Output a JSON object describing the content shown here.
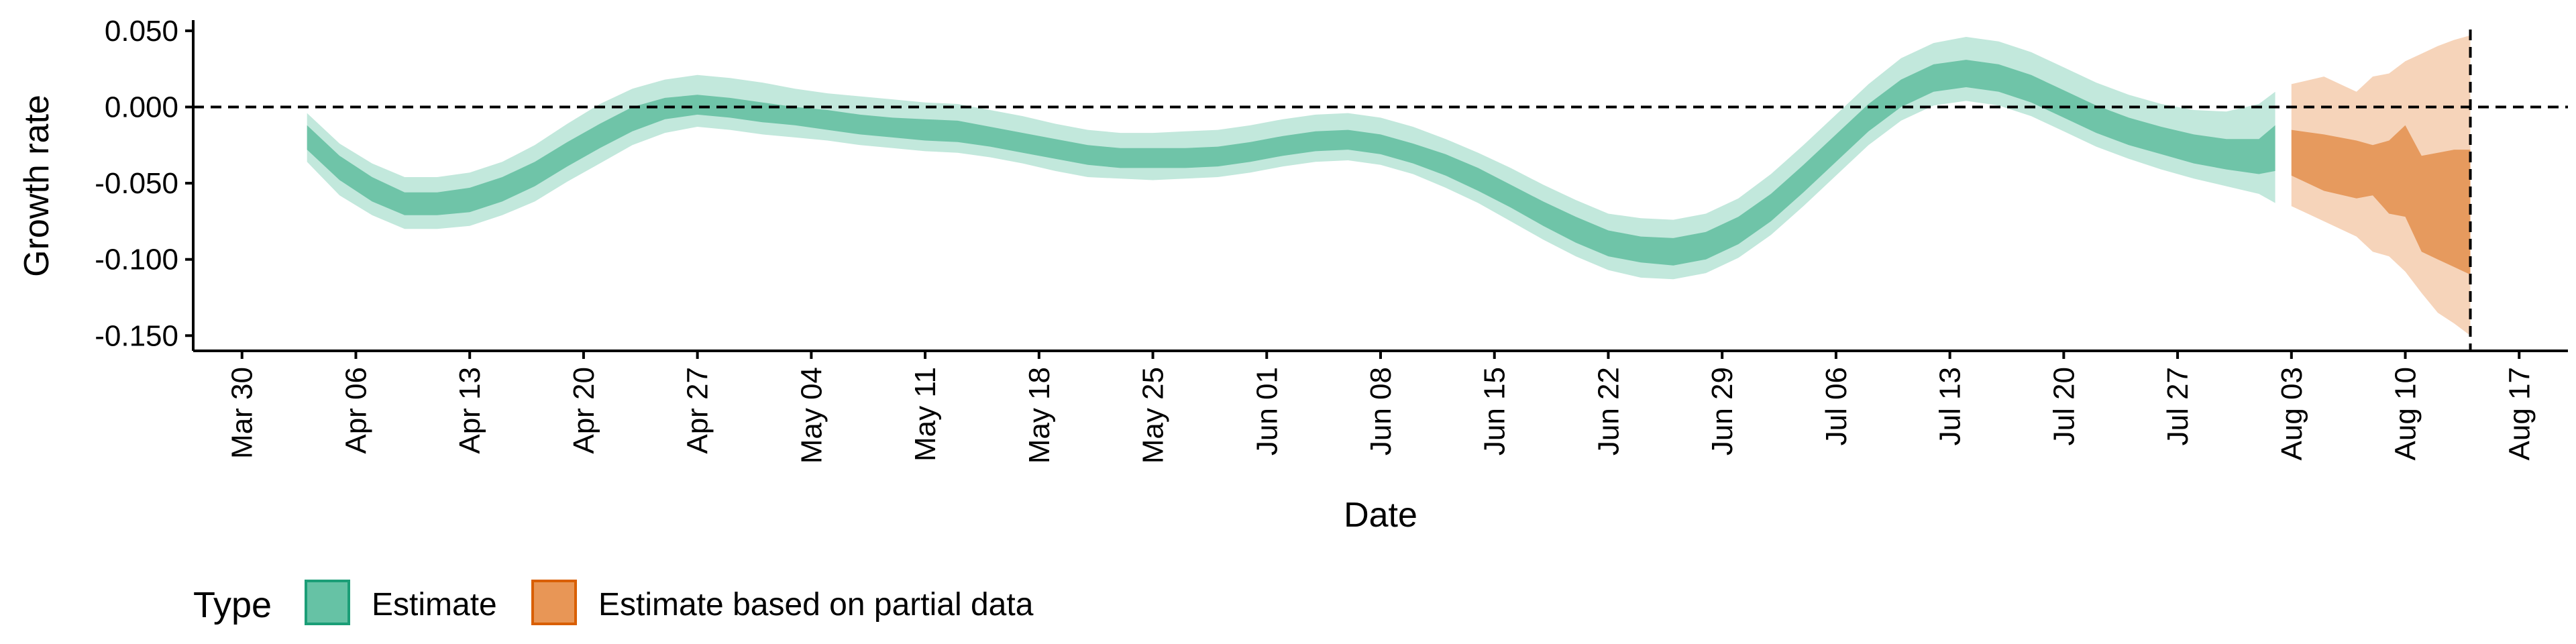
{
  "chart_data": {
    "type": "area",
    "xlabel": "Date",
    "ylabel": "Growth rate",
    "ylim": [
      -0.16,
      0.057
    ],
    "y_ticks": [
      -0.15,
      -0.1,
      -0.05,
      0.0,
      0.05
    ],
    "y_tick_labels": [
      "-0.150",
      "-0.100",
      "-0.050",
      "0.000",
      "0.050"
    ],
    "xlim": [
      "2020-03-27",
      "2020-08-20"
    ],
    "x_ticks": [
      "2020-03-30",
      "2020-04-06",
      "2020-04-13",
      "2020-04-20",
      "2020-04-27",
      "2020-05-04",
      "2020-05-11",
      "2020-05-18",
      "2020-05-25",
      "2020-06-01",
      "2020-06-08",
      "2020-06-15",
      "2020-06-22",
      "2020-06-29",
      "2020-07-06",
      "2020-07-13",
      "2020-07-20",
      "2020-07-27",
      "2020-08-03",
      "2020-08-10",
      "2020-08-17"
    ],
    "x_tick_labels": [
      "Mar 30",
      "Apr 06",
      "Apr 13",
      "Apr 20",
      "Apr 27",
      "May 04",
      "May 11",
      "May 18",
      "May 25",
      "Jun 01",
      "Jun 08",
      "Jun 15",
      "Jun 22",
      "Jun 29",
      "Jul 06",
      "Jul 13",
      "Jul 20",
      "Jul 27",
      "Aug 03",
      "Aug 10",
      "Aug 17"
    ],
    "reference_line_y": 0.0,
    "reference_line_x": "2020-08-14",
    "legend": {
      "title": "Type",
      "position": "bottom-left",
      "items": [
        {
          "label": "Estimate",
          "fill": "#66C2A5",
          "border": "#1B9E77"
        },
        {
          "label": "Estimate based on partial data",
          "fill": "#E89656",
          "border": "#D95F02"
        }
      ]
    },
    "colors": {
      "estimate_outer": "#C2E8DC",
      "estimate_inner": "#6FC4A8",
      "partial_outer": "#F6D4BA",
      "partial_inner": "#E69A5E"
    },
    "series": [
      {
        "name": "Estimate",
        "points": [
          {
            "x": "2020-04-03",
            "lo90": -0.036,
            "lo50": -0.028,
            "hi50": -0.012,
            "hi90": -0.004
          },
          {
            "x": "2020-04-05",
            "lo90": -0.058,
            "lo50": -0.048,
            "hi50": -0.032,
            "hi90": -0.024
          },
          {
            "x": "2020-04-07",
            "lo90": -0.071,
            "lo50": -0.062,
            "hi50": -0.046,
            "hi90": -0.037
          },
          {
            "x": "2020-04-09",
            "lo90": -0.08,
            "lo50": -0.071,
            "hi50": -0.056,
            "hi90": -0.046
          },
          {
            "x": "2020-04-11",
            "lo90": -0.08,
            "lo50": -0.071,
            "hi50": -0.056,
            "hi90": -0.046
          },
          {
            "x": "2020-04-13",
            "lo90": -0.078,
            "lo50": -0.069,
            "hi50": -0.053,
            "hi90": -0.043
          },
          {
            "x": "2020-04-15",
            "lo90": -0.071,
            "lo50": -0.062,
            "hi50": -0.046,
            "hi90": -0.036
          },
          {
            "x": "2020-04-17",
            "lo90": -0.062,
            "lo50": -0.052,
            "hi50": -0.036,
            "hi90": -0.025
          },
          {
            "x": "2020-04-19",
            "lo90": -0.049,
            "lo50": -0.039,
            "hi50": -0.023,
            "hi90": -0.011
          },
          {
            "x": "2020-04-21",
            "lo90": -0.037,
            "lo50": -0.027,
            "hi50": -0.011,
            "hi90": 0.002
          },
          {
            "x": "2020-04-23",
            "lo90": -0.025,
            "lo50": -0.016,
            "hi50": 0.0,
            "hi90": 0.012
          },
          {
            "x": "2020-04-25",
            "lo90": -0.017,
            "lo50": -0.008,
            "hi50": 0.006,
            "hi90": 0.018
          },
          {
            "x": "2020-04-27",
            "lo90": -0.013,
            "lo50": -0.005,
            "hi50": 0.008,
            "hi90": 0.021
          },
          {
            "x": "2020-04-29",
            "lo90": -0.015,
            "lo50": -0.007,
            "hi50": 0.006,
            "hi90": 0.019
          },
          {
            "x": "2020-05-01",
            "lo90": -0.018,
            "lo50": -0.01,
            "hi50": 0.003,
            "hi90": 0.016
          },
          {
            "x": "2020-05-03",
            "lo90": -0.02,
            "lo50": -0.012,
            "hi50": 0.0,
            "hi90": 0.012
          },
          {
            "x": "2020-05-05",
            "lo90": -0.022,
            "lo50": -0.015,
            "hi50": -0.002,
            "hi90": 0.009
          },
          {
            "x": "2020-05-07",
            "lo90": -0.025,
            "lo50": -0.018,
            "hi50": -0.005,
            "hi90": 0.007
          },
          {
            "x": "2020-05-09",
            "lo90": -0.027,
            "lo50": -0.02,
            "hi50": -0.007,
            "hi90": 0.005
          },
          {
            "x": "2020-05-11",
            "lo90": -0.029,
            "lo50": -0.022,
            "hi50": -0.008,
            "hi90": 0.003
          },
          {
            "x": "2020-05-13",
            "lo90": -0.03,
            "lo50": -0.023,
            "hi50": -0.009,
            "hi90": 0.002
          },
          {
            "x": "2020-05-15",
            "lo90": -0.033,
            "lo50": -0.026,
            "hi50": -0.013,
            "hi90": -0.002
          },
          {
            "x": "2020-05-17",
            "lo90": -0.037,
            "lo50": -0.03,
            "hi50": -0.017,
            "hi90": -0.006
          },
          {
            "x": "2020-05-19",
            "lo90": -0.042,
            "lo50": -0.034,
            "hi50": -0.021,
            "hi90": -0.011
          },
          {
            "x": "2020-05-21",
            "lo90": -0.046,
            "lo50": -0.038,
            "hi50": -0.025,
            "hi90": -0.015
          },
          {
            "x": "2020-05-23",
            "lo90": -0.047,
            "lo50": -0.04,
            "hi50": -0.027,
            "hi90": -0.017
          },
          {
            "x": "2020-05-25",
            "lo90": -0.048,
            "lo50": -0.04,
            "hi50": -0.027,
            "hi90": -0.017
          },
          {
            "x": "2020-05-27",
            "lo90": -0.047,
            "lo50": -0.04,
            "hi50": -0.027,
            "hi90": -0.016
          },
          {
            "x": "2020-05-29",
            "lo90": -0.046,
            "lo50": -0.039,
            "hi50": -0.026,
            "hi90": -0.015
          },
          {
            "x": "2020-05-31",
            "lo90": -0.043,
            "lo50": -0.036,
            "hi50": -0.023,
            "hi90": -0.012
          },
          {
            "x": "2020-06-02",
            "lo90": -0.039,
            "lo50": -0.032,
            "hi50": -0.019,
            "hi90": -0.008
          },
          {
            "x": "2020-06-04",
            "lo90": -0.036,
            "lo50": -0.029,
            "hi50": -0.016,
            "hi90": -0.005
          },
          {
            "x": "2020-06-06",
            "lo90": -0.035,
            "lo50": -0.028,
            "hi50": -0.015,
            "hi90": -0.004
          },
          {
            "x": "2020-06-08",
            "lo90": -0.038,
            "lo50": -0.031,
            "hi50": -0.018,
            "hi90": -0.007
          },
          {
            "x": "2020-06-10",
            "lo90": -0.044,
            "lo50": -0.037,
            "hi50": -0.024,
            "hi90": -0.013
          },
          {
            "x": "2020-06-12",
            "lo90": -0.053,
            "lo50": -0.045,
            "hi50": -0.031,
            "hi90": -0.021
          },
          {
            "x": "2020-06-14",
            "lo90": -0.063,
            "lo50": -0.055,
            "hi50": -0.04,
            "hi90": -0.03
          },
          {
            "x": "2020-06-16",
            "lo90": -0.075,
            "lo50": -0.066,
            "hi50": -0.051,
            "hi90": -0.04
          },
          {
            "x": "2020-06-18",
            "lo90": -0.087,
            "lo50": -0.078,
            "hi50": -0.062,
            "hi90": -0.051
          },
          {
            "x": "2020-06-20",
            "lo90": -0.098,
            "lo50": -0.089,
            "hi50": -0.072,
            "hi90": -0.061
          },
          {
            "x": "2020-06-22",
            "lo90": -0.107,
            "lo50": -0.098,
            "hi50": -0.081,
            "hi90": -0.07
          },
          {
            "x": "2020-06-24",
            "lo90": -0.112,
            "lo50": -0.102,
            "hi50": -0.085,
            "hi90": -0.073
          },
          {
            "x": "2020-06-26",
            "lo90": -0.113,
            "lo50": -0.104,
            "hi50": -0.086,
            "hi90": -0.074
          },
          {
            "x": "2020-06-28",
            "lo90": -0.109,
            "lo50": -0.1,
            "hi50": -0.082,
            "hi90": -0.07
          },
          {
            "x": "2020-06-30",
            "lo90": -0.099,
            "lo50": -0.09,
            "hi50": -0.072,
            "hi90": -0.06
          },
          {
            "x": "2020-07-02",
            "lo90": -0.084,
            "lo50": -0.075,
            "hi50": -0.057,
            "hi90": -0.044
          },
          {
            "x": "2020-07-04",
            "lo90": -0.065,
            "lo50": -0.056,
            "hi50": -0.038,
            "hi90": -0.025
          },
          {
            "x": "2020-07-06",
            "lo90": -0.045,
            "lo50": -0.036,
            "hi50": -0.018,
            "hi90": -0.005
          },
          {
            "x": "2020-07-08",
            "lo90": -0.025,
            "lo50": -0.016,
            "hi50": 0.002,
            "hi90": 0.015
          },
          {
            "x": "2020-07-10",
            "lo90": -0.009,
            "lo50": 0.0,
            "hi50": 0.018,
            "hi90": 0.032
          },
          {
            "x": "2020-07-12",
            "lo90": 0.001,
            "lo50": 0.01,
            "hi50": 0.028,
            "hi90": 0.042
          },
          {
            "x": "2020-07-14",
            "lo90": 0.004,
            "lo50": 0.013,
            "hi50": 0.031,
            "hi90": 0.046
          },
          {
            "x": "2020-07-16",
            "lo90": 0.001,
            "lo50": 0.01,
            "hi50": 0.028,
            "hi90": 0.043
          },
          {
            "x": "2020-07-18",
            "lo90": -0.006,
            "lo50": 0.003,
            "hi50": 0.021,
            "hi90": 0.036
          },
          {
            "x": "2020-07-20",
            "lo90": -0.016,
            "lo50": -0.007,
            "hi50": 0.011,
            "hi90": 0.026
          },
          {
            "x": "2020-07-22",
            "lo90": -0.026,
            "lo50": -0.017,
            "hi50": 0.001,
            "hi90": 0.016
          },
          {
            "x": "2020-07-24",
            "lo90": -0.034,
            "lo50": -0.025,
            "hi50": -0.007,
            "hi90": 0.008
          },
          {
            "x": "2020-07-26",
            "lo90": -0.041,
            "lo50": -0.031,
            "hi50": -0.013,
            "hi90": 0.002
          },
          {
            "x": "2020-07-28",
            "lo90": -0.047,
            "lo50": -0.037,
            "hi50": -0.018,
            "hi90": -0.002
          },
          {
            "x": "2020-07-30",
            "lo90": -0.052,
            "lo50": -0.041,
            "hi50": -0.021,
            "hi90": -0.003
          },
          {
            "x": "2020-08-01",
            "lo90": -0.057,
            "lo50": -0.044,
            "hi50": -0.021,
            "hi90": 0.002
          },
          {
            "x": "2020-08-02",
            "lo90": -0.063,
            "lo50": -0.042,
            "hi50": -0.012,
            "hi90": 0.01
          }
        ]
      },
      {
        "name": "Estimate based on partial data",
        "points": [
          {
            "x": "2020-08-03",
            "lo90": -0.065,
            "lo50": -0.045,
            "hi50": -0.015,
            "hi90": 0.015
          },
          {
            "x": "2020-08-05",
            "lo90": -0.075,
            "lo50": -0.055,
            "hi50": -0.018,
            "hi90": 0.02
          },
          {
            "x": "2020-08-07",
            "lo90": -0.085,
            "lo50": -0.06,
            "hi50": -0.022,
            "hi90": 0.01
          },
          {
            "x": "2020-08-08",
            "lo90": -0.095,
            "lo50": -0.058,
            "hi50": -0.025,
            "hi90": 0.02
          },
          {
            "x": "2020-08-09",
            "lo90": -0.098,
            "lo50": -0.07,
            "hi50": -0.022,
            "hi90": 0.022
          },
          {
            "x": "2020-08-10",
            "lo90": -0.108,
            "lo50": -0.072,
            "hi50": -0.012,
            "hi90": 0.03
          },
          {
            "x": "2020-08-11",
            "lo90": -0.122,
            "lo50": -0.095,
            "hi50": -0.032,
            "hi90": 0.035
          },
          {
            "x": "2020-08-12",
            "lo90": -0.135,
            "lo50": -0.1,
            "hi50": -0.03,
            "hi90": 0.04
          },
          {
            "x": "2020-08-13",
            "lo90": -0.142,
            "lo50": -0.105,
            "hi50": -0.028,
            "hi90": 0.044
          },
          {
            "x": "2020-08-14",
            "lo90": -0.15,
            "lo50": -0.11,
            "hi50": -0.028,
            "hi90": 0.047
          }
        ]
      }
    ]
  }
}
